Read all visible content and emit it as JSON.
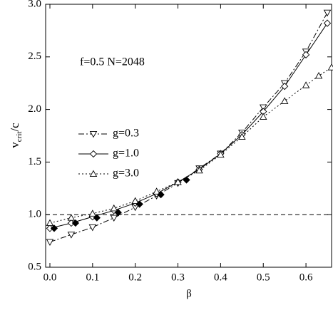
{
  "chart_data": {
    "type": "line",
    "xlabel": "β",
    "ylabel": "v",
    "ylabel_sub": "crit",
    "ylabel_suffix": "/c",
    "annotation": "f=0.5   N=2048",
    "xlim": [
      -0.01,
      0.66
    ],
    "ylim": [
      0.5,
      3.0
    ],
    "xticks": [
      {
        "value": 0,
        "label": "0.0"
      },
      0.1,
      0.2,
      0.3,
      0.4,
      0.5,
      0.6
    ],
    "yticks": [
      0.5,
      {
        "value": 1,
        "label": "1.0"
      },
      1.5,
      {
        "value": 2,
        "label": "2.0"
      },
      2.5,
      {
        "value": 3,
        "label": "3.0"
      }
    ],
    "hline": 1.0,
    "series": [
      {
        "name": "g=0.3",
        "color": "#000000",
        "dash": "dashdot",
        "marker": "triangle-down",
        "x": [
          0,
          0.05,
          0.1,
          0.15,
          0.2,
          0.25,
          0.3,
          0.35,
          0.4,
          0.45,
          0.5,
          0.55,
          0.6,
          0.65
        ],
        "values": [
          0.74,
          0.81,
          0.88,
          0.97,
          1.07,
          1.18,
          1.3,
          1.44,
          1.58,
          1.78,
          2.02,
          2.25,
          2.55,
          2.92
        ]
      },
      {
        "name": "g=1.0",
        "color": "#000000",
        "dash": "solid",
        "marker": "diamond",
        "x": [
          0,
          0.05,
          0.1,
          0.15,
          0.2,
          0.25,
          0.3,
          0.35,
          0.4,
          0.45,
          0.5,
          0.55,
          0.6,
          0.65
        ],
        "values": [
          0.87,
          0.92,
          0.98,
          1.04,
          1.11,
          1.2,
          1.31,
          1.43,
          1.58,
          1.76,
          1.98,
          2.22,
          2.52,
          2.82
        ]
      },
      {
        "name": "g=3.0",
        "color": "#000000",
        "dash": "dotted",
        "marker": "triangle-up",
        "x": [
          0,
          0.05,
          0.1,
          0.15,
          0.2,
          0.25,
          0.3,
          0.35,
          0.4,
          0.45,
          0.5,
          0.55,
          0.6,
          0.63,
          0.66
        ],
        "values": [
          0.92,
          0.97,
          1.01,
          1.06,
          1.13,
          1.22,
          1.31,
          1.42,
          1.57,
          1.74,
          1.93,
          2.08,
          2.23,
          2.32,
          2.4
        ]
      },
      {
        "color": "#000000",
        "dash": "none",
        "marker": "diamond-filled",
        "x": [
          0.01,
          0.06,
          0.11,
          0.16,
          0.21,
          0.26,
          0.32
        ],
        "values": [
          0.87,
          0.92,
          0.97,
          1.02,
          1.1,
          1.19,
          1.33
        ]
      }
    ]
  }
}
